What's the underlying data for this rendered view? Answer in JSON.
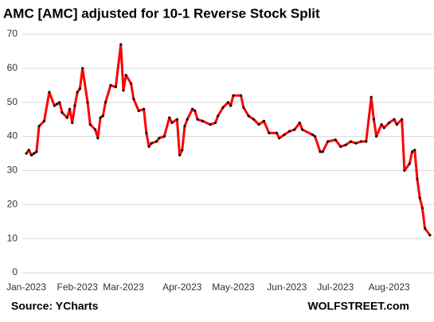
{
  "chart_data": {
    "type": "line",
    "title": "AMC [AMC] adjusted  for 10-1 Reverse Stock Split",
    "source": "Source: YCharts",
    "credit": "WOLFSTREET.com",
    "x": [
      0,
      1,
      2,
      3,
      4,
      5,
      7,
      9,
      11,
      12,
      13,
      14,
      16,
      17,
      18,
      19,
      20,
      21,
      22,
      24,
      25,
      27,
      28,
      29,
      30,
      31,
      33,
      35,
      37,
      38,
      39,
      41,
      42,
      44,
      46,
      47,
      48,
      49,
      51,
      52,
      54,
      56,
      57,
      59,
      60,
      61,
      62,
      63,
      65,
      66,
      67,
      69,
      72,
      74,
      75,
      77,
      79,
      80,
      81,
      84,
      85,
      87,
      89,
      91,
      93,
      95,
      98,
      99,
      101,
      103,
      105,
      107,
      108,
      112,
      113,
      115,
      116,
      118,
      121,
      123,
      125,
      127,
      129,
      131,
      133,
      135,
      136,
      137,
      139,
      140,
      142,
      144,
      145,
      147,
      148,
      150,
      151,
      152,
      153,
      154,
      155,
      156,
      158
    ],
    "series": [
      {
        "name": "AMC",
        "color": "#ff0000",
        "values": [
          35,
          36,
          34.5,
          35,
          35.5,
          43,
          44.5,
          53,
          49,
          49.5,
          50,
          47,
          45.5,
          48,
          44,
          49,
          53,
          54,
          60,
          50,
          43.5,
          42,
          39.5,
          45.5,
          46,
          50,
          55,
          54.5,
          67,
          53.5,
          58,
          55.5,
          51,
          47.5,
          48,
          41,
          37,
          38,
          38.5,
          39.5,
          40,
          45.5,
          44,
          45,
          34.5,
          36,
          43,
          45,
          48,
          47.5,
          45,
          44.5,
          43.5,
          44,
          46,
          48.5,
          50,
          49,
          52,
          52,
          48.5,
          46,
          45,
          43.5,
          44.5,
          41,
          41,
          39.5,
          40.5,
          41.5,
          42,
          44,
          42,
          40.5,
          40,
          35.5,
          35.5,
          38.5,
          39,
          37,
          37.5,
          38.5,
          38,
          38.5,
          38.5,
          51.5,
          45,
          40,
          43.5,
          42.5,
          44,
          45,
          43.5,
          45,
          30,
          32,
          35.5,
          36,
          27.5,
          22,
          19,
          13,
          11
        ]
      }
    ],
    "xlim": [
      -2,
      158
    ],
    "xticks": [
      {
        "value": 0,
        "label": "Jan-2023"
      },
      {
        "value": 20,
        "label": "Feb-2023"
      },
      {
        "value": 38,
        "label": "Mar-2023"
      },
      {
        "value": 61,
        "label": "Apr-2023"
      },
      {
        "value": 81,
        "label": "May-2023"
      },
      {
        "value": 102,
        "label": "Jun-2023"
      },
      {
        "value": 121,
        "label": "Jul-2023"
      },
      {
        "value": 142,
        "label": "Aug-2023"
      }
    ],
    "ylim": [
      0,
      70
    ],
    "yticks": [
      0,
      10,
      20,
      30,
      40,
      50,
      60,
      70
    ],
    "grid": true
  }
}
